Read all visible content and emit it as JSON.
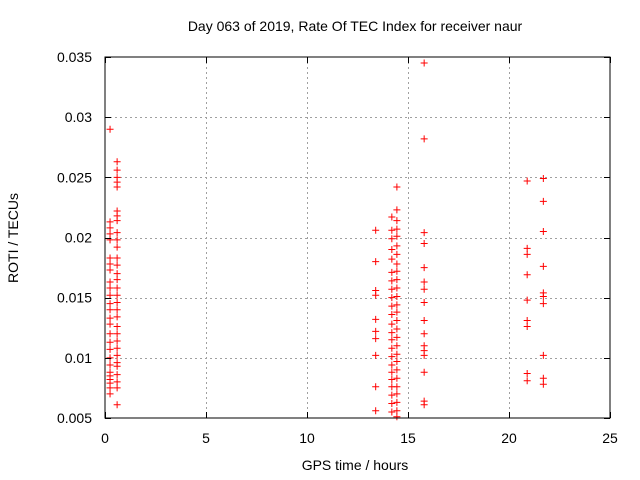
{
  "chart_data": {
    "type": "scatter",
    "title": "Day 063 of 2019, Rate Of TEC Index for receiver naur",
    "xlabel": "GPS time / hours",
    "ylabel": "ROTI / TECUs",
    "xlim": [
      0,
      25
    ],
    "ylim": [
      0.005,
      0.035
    ],
    "xticks": [
      0,
      5,
      10,
      15,
      20,
      25
    ],
    "xtick_labels": [
      "0",
      "5",
      "10",
      "15",
      "20",
      "25"
    ],
    "yticks": [
      0.005,
      0.01,
      0.015,
      0.02,
      0.025,
      0.03,
      0.035
    ],
    "ytick_labels": [
      "0.005",
      "0.01",
      "0.015",
      "0.02",
      "0.025",
      "0.03",
      "0.035"
    ],
    "grid": true,
    "marker": "+",
    "color": "#ff0000",
    "series": [
      {
        "name": "ROTI",
        "points": [
          [
            0.25,
            0.029
          ],
          [
            0.25,
            0.0213
          ],
          [
            0.25,
            0.0208
          ],
          [
            0.25,
            0.0203
          ],
          [
            0.25,
            0.0198
          ],
          [
            0.25,
            0.0183
          ],
          [
            0.25,
            0.0178
          ],
          [
            0.25,
            0.0173
          ],
          [
            0.25,
            0.0163
          ],
          [
            0.25,
            0.0158
          ],
          [
            0.25,
            0.0152
          ],
          [
            0.25,
            0.0145
          ],
          [
            0.25,
            0.014
          ],
          [
            0.25,
            0.0133
          ],
          [
            0.25,
            0.0128
          ],
          [
            0.25,
            0.012
          ],
          [
            0.25,
            0.0113
          ],
          [
            0.25,
            0.0107
          ],
          [
            0.25,
            0.01
          ],
          [
            0.25,
            0.0094
          ],
          [
            0.25,
            0.0088
          ],
          [
            0.25,
            0.0085
          ],
          [
            0.25,
            0.0082
          ],
          [
            0.25,
            0.0079
          ],
          [
            0.25,
            0.0075
          ],
          [
            0.25,
            0.007
          ],
          [
            0.6,
            0.0263
          ],
          [
            0.6,
            0.0256
          ],
          [
            0.6,
            0.025
          ],
          [
            0.6,
            0.0246
          ],
          [
            0.6,
            0.0242
          ],
          [
            0.6,
            0.0222
          ],
          [
            0.6,
            0.0218
          ],
          [
            0.6,
            0.0214
          ],
          [
            0.6,
            0.0204
          ],
          [
            0.6,
            0.0198
          ],
          [
            0.6,
            0.0192
          ],
          [
            0.6,
            0.0183
          ],
          [
            0.6,
            0.0177
          ],
          [
            0.6,
            0.017
          ],
          [
            0.6,
            0.0165
          ],
          [
            0.6,
            0.0158
          ],
          [
            0.6,
            0.0152
          ],
          [
            0.6,
            0.0146
          ],
          [
            0.6,
            0.014
          ],
          [
            0.6,
            0.0134
          ],
          [
            0.6,
            0.0126
          ],
          [
            0.6,
            0.012
          ],
          [
            0.6,
            0.0114
          ],
          [
            0.6,
            0.0108
          ],
          [
            0.6,
            0.0102
          ],
          [
            0.6,
            0.0096
          ],
          [
            0.6,
            0.0093
          ],
          [
            0.6,
            0.0086
          ],
          [
            0.6,
            0.008
          ],
          [
            0.6,
            0.0075
          ],
          [
            0.6,
            0.0061
          ],
          [
            13.4,
            0.0206
          ],
          [
            13.4,
            0.018
          ],
          [
            13.4,
            0.0156
          ],
          [
            13.4,
            0.0152
          ],
          [
            13.4,
            0.0132
          ],
          [
            13.4,
            0.0122
          ],
          [
            13.4,
            0.0116
          ],
          [
            13.4,
            0.0102
          ],
          [
            13.4,
            0.0076
          ],
          [
            13.4,
            0.0056
          ],
          [
            14.2,
            0.0217
          ],
          [
            14.2,
            0.0206
          ],
          [
            14.2,
            0.0199
          ],
          [
            14.2,
            0.019
          ],
          [
            14.2,
            0.0182
          ],
          [
            14.2,
            0.0171
          ],
          [
            14.2,
            0.0164
          ],
          [
            14.2,
            0.0157
          ],
          [
            14.2,
            0.015
          ],
          [
            14.2,
            0.0143
          ],
          [
            14.2,
            0.0136
          ],
          [
            14.2,
            0.0128
          ],
          [
            14.2,
            0.0121
          ],
          [
            14.2,
            0.0115
          ],
          [
            14.2,
            0.0108
          ],
          [
            14.2,
            0.0101
          ],
          [
            14.2,
            0.0094
          ],
          [
            14.2,
            0.0088
          ],
          [
            14.2,
            0.0082
          ],
          [
            14.2,
            0.0076
          ],
          [
            14.2,
            0.0069
          ],
          [
            14.2,
            0.0062
          ],
          [
            14.2,
            0.0055
          ],
          [
            14.45,
            0.0242
          ],
          [
            14.45,
            0.0223
          ],
          [
            14.45,
            0.0214
          ],
          [
            14.45,
            0.0207
          ],
          [
            14.45,
            0.0201
          ],
          [
            14.45,
            0.0193
          ],
          [
            14.45,
            0.0186
          ],
          [
            14.45,
            0.0178
          ],
          [
            14.45,
            0.0172
          ],
          [
            14.45,
            0.0165
          ],
          [
            14.45,
            0.0158
          ],
          [
            14.45,
            0.0151
          ],
          [
            14.45,
            0.0144
          ],
          [
            14.45,
            0.0138
          ],
          [
            14.45,
            0.0131
          ],
          [
            14.45,
            0.0124
          ],
          [
            14.45,
            0.0117
          ],
          [
            14.45,
            0.011
          ],
          [
            14.45,
            0.0103
          ],
          [
            14.45,
            0.0097
          ],
          [
            14.45,
            0.009
          ],
          [
            14.45,
            0.0083
          ],
          [
            14.45,
            0.0076
          ],
          [
            14.45,
            0.007
          ],
          [
            14.45,
            0.0063
          ],
          [
            14.45,
            0.0056
          ],
          [
            14.45,
            0.0051
          ],
          [
            15.8,
            0.0345
          ],
          [
            15.8,
            0.0282
          ],
          [
            15.8,
            0.0204
          ],
          [
            15.8,
            0.0195
          ],
          [
            15.8,
            0.0175
          ],
          [
            15.8,
            0.0163
          ],
          [
            15.8,
            0.0157
          ],
          [
            15.8,
            0.0146
          ],
          [
            15.8,
            0.0131
          ],
          [
            15.8,
            0.012
          ],
          [
            15.8,
            0.011
          ],
          [
            15.8,
            0.0106
          ],
          [
            15.8,
            0.0102
          ],
          [
            15.8,
            0.0088
          ],
          [
            15.8,
            0.0064
          ],
          [
            15.8,
            0.0061
          ],
          [
            20.9,
            0.0247
          ],
          [
            20.9,
            0.0191
          ],
          [
            20.9,
            0.0186
          ],
          [
            20.9,
            0.0169
          ],
          [
            20.9,
            0.0148
          ],
          [
            20.9,
            0.0131
          ],
          [
            20.9,
            0.0126
          ],
          [
            20.9,
            0.0087
          ],
          [
            20.9,
            0.0081
          ],
          [
            21.7,
            0.0249
          ],
          [
            21.7,
            0.023
          ],
          [
            21.7,
            0.0205
          ],
          [
            21.7,
            0.0176
          ],
          [
            21.7,
            0.0154
          ],
          [
            21.7,
            0.0151
          ],
          [
            21.7,
            0.0145
          ],
          [
            21.7,
            0.0102
          ],
          [
            21.7,
            0.0083
          ],
          [
            21.7,
            0.0078
          ]
        ]
      }
    ]
  }
}
